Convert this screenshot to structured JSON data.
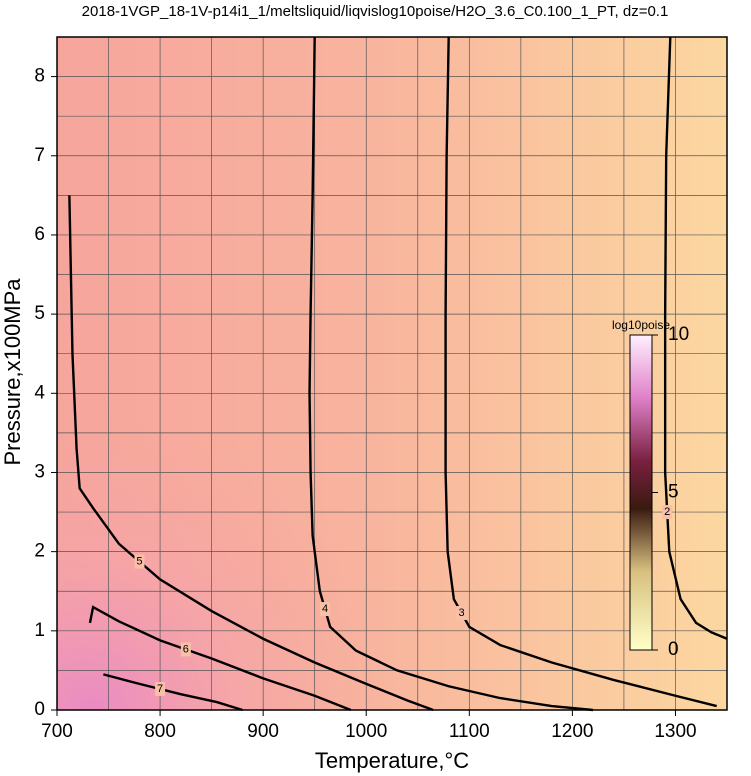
{
  "chart_data": {
    "type": "contour",
    "title": "2018-1VGP_18-1V-p14i1_1/meltsliquid/liqvislog10poise/H2O_3.6_C0.100_1_PT, dz=0.1",
    "xlabel": "Temperature,°C",
    "ylabel": "Pressure,x100MPa",
    "xlim": [
      700,
      1350
    ],
    "ylim": [
      0,
      8.5
    ],
    "xticks": [
      700,
      800,
      900,
      1000,
      1100,
      1200,
      1300
    ],
    "yticks": [
      0,
      1,
      2,
      3,
      4,
      5,
      6,
      7,
      8
    ],
    "xgrid": [
      750,
      850,
      950,
      1050,
      1150,
      1250
    ],
    "ygrid": [
      0.5,
      1.5,
      2.5,
      3.5,
      4.5,
      5.5,
      6.5,
      7.5
    ],
    "contours": [
      {
        "level": 2,
        "x": [
          1295,
          1291,
          1290,
          1290,
          1294,
          1305,
          1320,
          1335,
          1350
        ],
        "y": [
          8.5,
          7,
          5,
          3,
          2,
          1.4,
          1.1,
          0.98,
          0.9
        ]
      },
      {
        "level": 3,
        "x": [
          1080,
          1078,
          1077,
          1077,
          1079,
          1085,
          1100,
          1130,
          1180,
          1240,
          1300,
          1340
        ],
        "y": [
          8.5,
          7,
          5,
          3,
          2,
          1.4,
          1.05,
          0.82,
          0.6,
          0.38,
          0.18,
          0.05
        ]
      },
      {
        "level": 4,
        "x": [
          950,
          948,
          946,
          945,
          946,
          948,
          955,
          965,
          990,
          1030,
          1080,
          1130,
          1180,
          1220
        ],
        "y": [
          8.5,
          6.5,
          5,
          4,
          3,
          2.2,
          1.5,
          1.05,
          0.75,
          0.5,
          0.3,
          0.15,
          0.05,
          0
        ]
      },
      {
        "level": 5,
        "x": [
          712,
          715,
          719,
          722,
          735,
          760,
          800,
          850,
          900,
          950,
          1000,
          1040,
          1065
        ],
        "y": [
          6.5,
          4.5,
          3.3,
          2.8,
          2.55,
          2.1,
          1.65,
          1.25,
          0.9,
          0.6,
          0.33,
          0.12,
          0
        ]
      },
      {
        "level": 6,
        "x": [
          732,
          735,
          760,
          800,
          850,
          900,
          950,
          985
        ],
        "y": [
          1.1,
          1.3,
          1.12,
          0.88,
          0.65,
          0.4,
          0.18,
          0
        ]
      },
      {
        "level": 7,
        "x": [
          745,
          780,
          820,
          855,
          880
        ],
        "y": [
          0.45,
          0.33,
          0.2,
          0.1,
          0
        ]
      }
    ],
    "colorbar": {
      "label": "log10poise",
      "lim": [
        0,
        10
      ],
      "ticks": [
        0,
        5,
        10
      ]
    }
  }
}
